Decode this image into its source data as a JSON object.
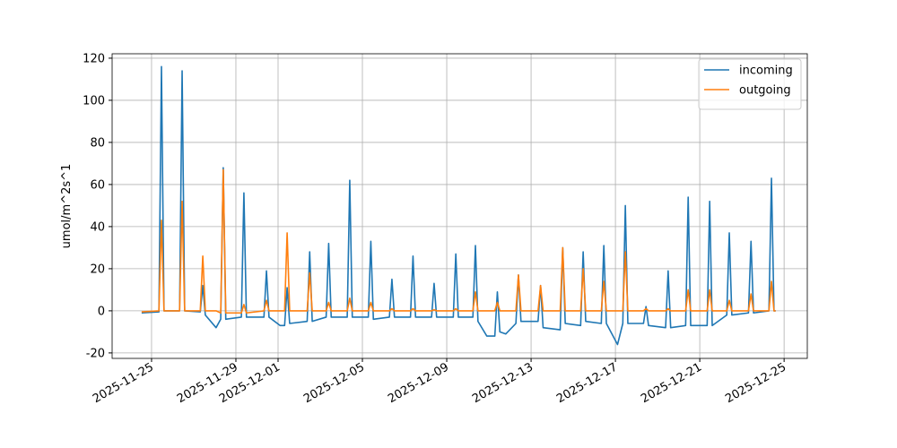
{
  "chart_data": {
    "type": "line",
    "ylabel": "umol/m^2s^1",
    "xlim": [
      -1.87,
      31.1
    ],
    "ylim": [
      -22.6,
      122.1
    ],
    "xticks": [
      {
        "value": 0,
        "label": "2025-11-25"
      },
      {
        "value": 4,
        "label": "2025-11-29"
      },
      {
        "value": 6,
        "label": "2025-12-01"
      },
      {
        "value": 10,
        "label": "2025-12-05"
      },
      {
        "value": 14,
        "label": "2025-12-09"
      },
      {
        "value": 18,
        "label": "2025-12-13"
      },
      {
        "value": 22,
        "label": "2025-12-17"
      },
      {
        "value": 26,
        "label": "2025-12-21"
      },
      {
        "value": 30,
        "label": "2025-12-25"
      }
    ],
    "yticks": [
      -20,
      0,
      20,
      40,
      60,
      80,
      100,
      120
    ],
    "grid": true,
    "legend": "upper right",
    "x": [
      -0.47,
      0.35,
      0.47,
      0.59,
      1.33,
      1.45,
      1.57,
      2.31,
      2.43,
      2.55,
      3.06,
      3.28,
      3.4,
      3.52,
      4.26,
      4.38,
      4.5,
      5.33,
      5.45,
      5.57,
      6.1,
      6.31,
      6.43,
      6.55,
      7.38,
      7.5,
      7.62,
      8.28,
      8.4,
      8.52,
      9.28,
      9.4,
      9.52,
      10.28,
      10.4,
      10.52,
      11.28,
      11.4,
      11.52,
      12.28,
      12.4,
      12.52,
      13.28,
      13.4,
      13.52,
      14.31,
      14.43,
      14.55,
      15.24,
      15.36,
      15.48,
      15.9,
      16.28,
      16.4,
      16.52,
      16.8,
      17.28,
      17.4,
      17.52,
      18.33,
      18.45,
      18.57,
      19.38,
      19.5,
      19.62,
      20.35,
      20.47,
      20.59,
      21.33,
      21.45,
      21.57,
      22.1,
      22.35,
      22.47,
      22.59,
      23.33,
      23.45,
      23.57,
      24.38,
      24.5,
      24.62,
      25.33,
      25.45,
      25.57,
      26.35,
      26.47,
      26.59,
      27.28,
      27.4,
      27.52,
      28.31,
      28.43,
      28.55,
      29.28,
      29.4,
      29.52,
      29.6
    ],
    "series": [
      {
        "name": "incoming",
        "color": "#1f77b4",
        "values": [
          -1,
          -0.5,
          116,
          0,
          0,
          114,
          0,
          -0.5,
          12,
          -2,
          -8,
          -4,
          68,
          -4,
          -3,
          56,
          -3,
          -3,
          19,
          -3,
          -7,
          -7,
          11,
          -6,
          -5,
          28,
          -5,
          -3,
          32,
          -3,
          -3,
          62,
          -3,
          -3,
          33,
          -4,
          -3,
          15,
          -3,
          -3,
          26,
          -3,
          -3,
          13,
          -3,
          -3,
          27,
          -3,
          -3,
          31,
          -5,
          -12,
          -12,
          9,
          -10,
          -11,
          -6,
          17,
          -5,
          -5,
          12,
          -8,
          -9,
          30,
          -6,
          -7,
          28,
          -5,
          -6,
          31,
          -6,
          -16,
          -6,
          50,
          -6,
          -6,
          2,
          -7,
          -8,
          19,
          -8,
          -7,
          54,
          -7,
          -7,
          52,
          -7,
          -2,
          37,
          -2,
          -1,
          33,
          -1,
          0,
          63,
          0,
          0
        ]
      },
      {
        "name": "outgoing",
        "color": "#ff7f0e",
        "values": [
          -0.5,
          0,
          43,
          0,
          0,
          52,
          0,
          0,
          26,
          0,
          0,
          -1,
          67,
          -1,
          -1,
          3,
          -1,
          0,
          5,
          0,
          0,
          0,
          37,
          0,
          0,
          18,
          0,
          0,
          4,
          0,
          0,
          6,
          0,
          0,
          4,
          0,
          0,
          1,
          0,
          0,
          1,
          0,
          0,
          0.5,
          0,
          0,
          1,
          0,
          0,
          9,
          0,
          0,
          0,
          4,
          0,
          0,
          0,
          17,
          0,
          0,
          12,
          0,
          0,
          30,
          0,
          0,
          20,
          0,
          0,
          14,
          0,
          0,
          0,
          28,
          0,
          0,
          1,
          0,
          0,
          1,
          0,
          0,
          10,
          0,
          0,
          10,
          0,
          0,
          5,
          0,
          0,
          8,
          0,
          0,
          14,
          0,
          0
        ]
      }
    ]
  }
}
